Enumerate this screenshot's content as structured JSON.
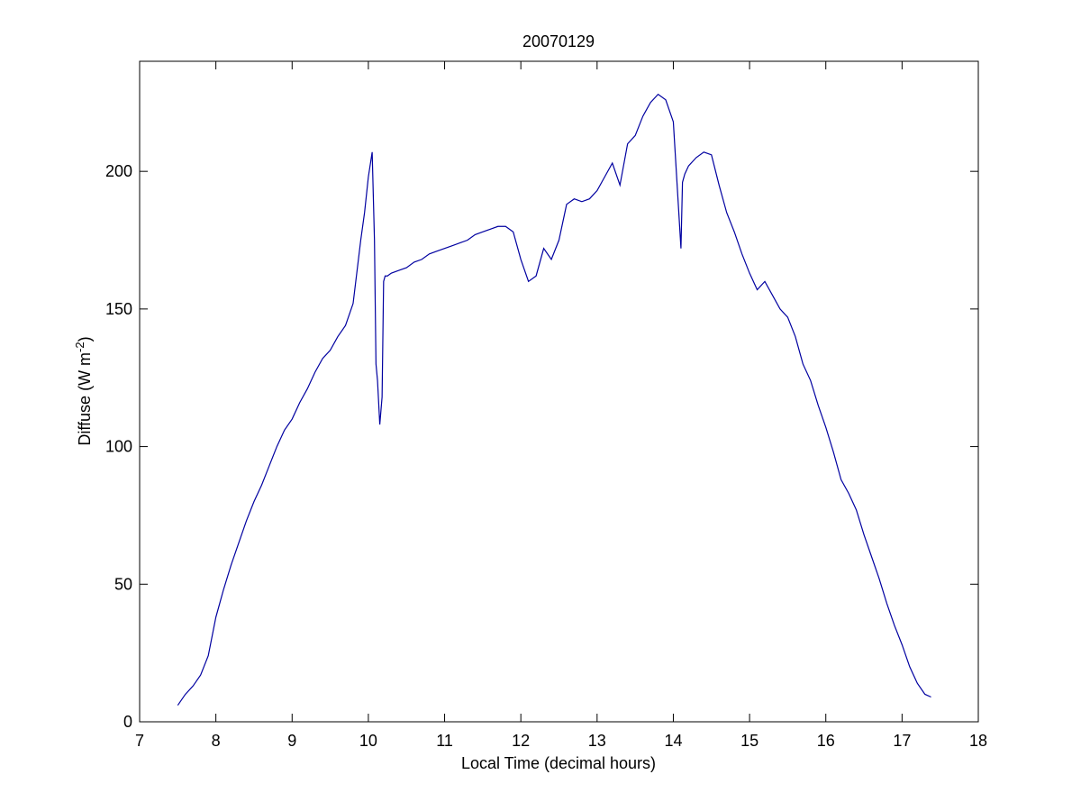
{
  "chart_data": {
    "type": "line",
    "title": "20070129",
    "xlabel": "Local Time (decimal hours)",
    "ylabel_main": "Diffuse (W m",
    "ylabel_sup": "-2",
    "ylabel_end": ")",
    "xlim": [
      7,
      18
    ],
    "ylim": [
      0,
      240
    ],
    "xticks": [
      7,
      8,
      9,
      10,
      11,
      12,
      13,
      14,
      15,
      16,
      17,
      18
    ],
    "yticks": [
      0,
      50,
      100,
      150,
      200
    ],
    "grid": false,
    "line_color": "#0000a0",
    "series": [
      {
        "x": [
          7.5,
          7.6,
          7.7,
          7.8,
          7.9,
          8.0,
          8.05,
          8.1,
          8.2,
          8.3,
          8.4,
          8.5,
          8.6,
          8.7,
          8.8,
          8.9,
          9.0,
          9.1,
          9.2,
          9.3,
          9.4,
          9.5,
          9.6,
          9.7,
          9.8,
          9.9,
          9.95,
          10.0,
          10.05,
          10.08,
          10.1,
          10.12,
          10.15,
          10.18,
          10.2,
          10.22,
          10.25,
          10.3,
          10.4,
          10.5,
          10.6,
          10.7,
          10.8,
          10.9,
          11.0,
          11.1,
          11.2,
          11.3,
          11.4,
          11.5,
          11.6,
          11.7,
          11.8,
          11.9,
          12.0,
          12.1,
          12.2,
          12.3,
          12.4,
          12.5,
          12.6,
          12.7,
          12.8,
          12.9,
          13.0,
          13.1,
          13.2,
          13.3,
          13.4,
          13.5,
          13.6,
          13.7,
          13.8,
          13.9,
          14.0,
          14.05,
          14.1,
          14.12,
          14.15,
          14.2,
          14.3,
          14.4,
          14.5,
          14.6,
          14.7,
          14.8,
          14.9,
          15.0,
          15.1,
          15.2,
          15.3,
          15.4,
          15.5,
          15.6,
          15.7,
          15.8,
          15.9,
          16.0,
          16.1,
          16.2,
          16.3,
          16.4,
          16.5,
          16.6,
          16.7,
          16.8,
          16.9,
          17.0,
          17.1,
          17.2,
          17.3,
          17.38
        ],
        "y": [
          6,
          10,
          13,
          17,
          24,
          38,
          43,
          48,
          57,
          65,
          73,
          80,
          86,
          93,
          100,
          106,
          110,
          116,
          121,
          127,
          132,
          135,
          140,
          144,
          152,
          175,
          185,
          198,
          207,
          175,
          130,
          124,
          108,
          118,
          160,
          162,
          162,
          163,
          164,
          165,
          167,
          168,
          170,
          171,
          172,
          173,
          174,
          175,
          177,
          178,
          179,
          180,
          180,
          178,
          168,
          160,
          162,
          172,
          168,
          175,
          188,
          190,
          189,
          190,
          193,
          198,
          203,
          195,
          210,
          213,
          220,
          225,
          228,
          226,
          218,
          195,
          172,
          196,
          199,
          202,
          205,
          207,
          206,
          195,
          185,
          178,
          170,
          163,
          157,
          160,
          155,
          150,
          147,
          140,
          130,
          124,
          115,
          107,
          98,
          88,
          83,
          77,
          68,
          60,
          52,
          43,
          35,
          28,
          20,
          14,
          10,
          9
        ]
      }
    ]
  }
}
